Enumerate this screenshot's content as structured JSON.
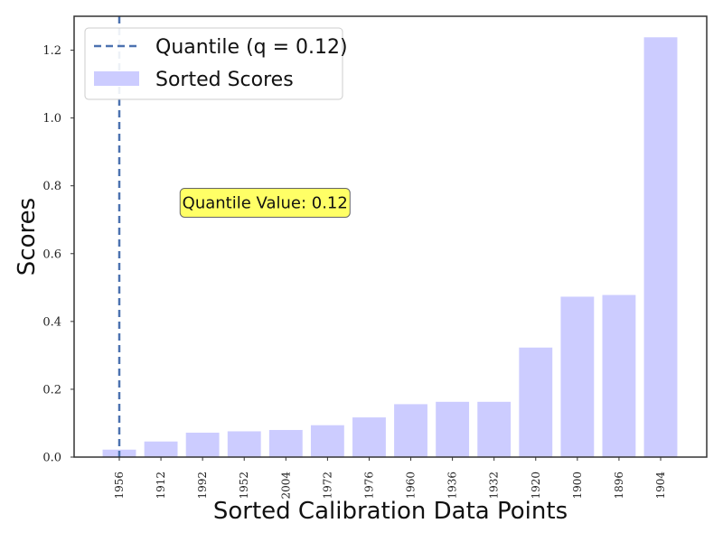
{
  "chart_data": {
    "type": "bar",
    "categories": [
      "1956",
      "1912",
      "1992",
      "1952",
      "2004",
      "1972",
      "1976",
      "1960",
      "1936",
      "1932",
      "1920",
      "1900",
      "1896",
      "1904"
    ],
    "values": [
      0.022,
      0.046,
      0.072,
      0.076,
      0.08,
      0.094,
      0.117,
      0.156,
      0.163,
      0.163,
      0.323,
      0.473,
      0.478,
      1.238
    ],
    "xlabel": "Sorted Calibration Data Points",
    "ylabel": "Scores",
    "ylim": [
      0,
      1.3
    ],
    "yticks": [
      "0.0",
      "0.2",
      "0.4",
      "0.6",
      "0.8",
      "1.0",
      "1.2"
    ],
    "grid": false,
    "legend_position": "top-left",
    "bar_color": "#ccccff",
    "quantile_line": {
      "x_index": 0.5,
      "label": "Quantile (q = 0.12)",
      "color": "#4c72b0",
      "style": "dashed"
    },
    "series": [
      {
        "name": "Sorted Scores",
        "values": [
          0.022,
          0.046,
          0.072,
          0.076,
          0.08,
          0.094,
          0.117,
          0.156,
          0.163,
          0.163,
          0.323,
          0.473,
          0.478,
          1.238
        ]
      }
    ],
    "annotation": {
      "text": "Quantile Value: 0.12",
      "x_index": 3.5,
      "y": 0.75,
      "background": "#ffff66"
    }
  }
}
